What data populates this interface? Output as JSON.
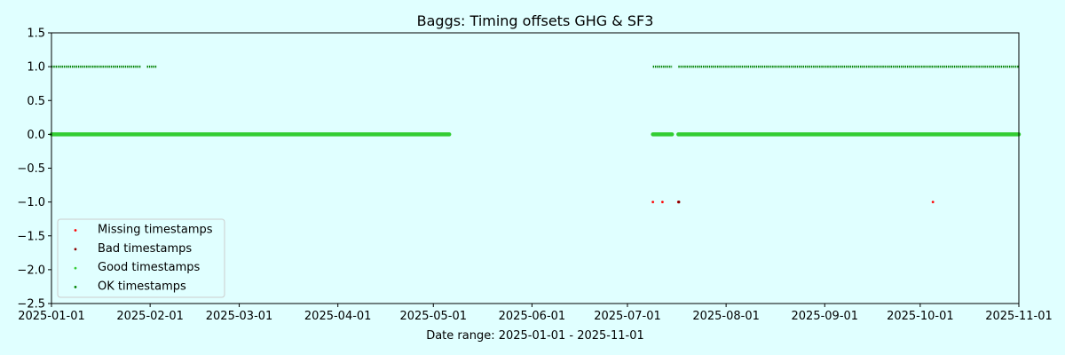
{
  "chart_data": {
    "type": "scatter",
    "title": "Baggs: Timing offsets GHG & SF3",
    "xlabel": "Date range: 2025-01-01 - 2025-11-01",
    "ylabel": "",
    "xlim": [
      "2025-01-01",
      "2025-11-01"
    ],
    "ylim": [
      -2.5,
      1.5
    ],
    "x_ticks": [
      "2025-01-01",
      "2025-02-01",
      "2025-03-01",
      "2025-04-01",
      "2025-05-01",
      "2025-06-01",
      "2025-07-01",
      "2025-08-01",
      "2025-09-01",
      "2025-10-01",
      "2025-11-01"
    ],
    "y_ticks": [
      1.5,
      1.0,
      0.5,
      0.0,
      -0.5,
      -1.0,
      -1.5,
      -2.0,
      -2.5
    ],
    "y_tick_labels": [
      "1.5",
      "1.0",
      "0.5",
      "0.0",
      "−0.5",
      "−1.0",
      "−1.5",
      "−2.0",
      "−2.5"
    ],
    "grid": false,
    "legend_position": "lower-left",
    "background": "#e0ffff",
    "series": [
      {
        "name": "Missing timestamps",
        "color": "#ff0000",
        "y": -1.0,
        "points": [
          "2025-07-09",
          "2025-07-12",
          "2025-07-17",
          "2025-07-17",
          "2025-10-05"
        ]
      },
      {
        "name": "Bad timestamps",
        "color": "#8b0000",
        "y": -1.0,
        "points": [
          "2025-07-17"
        ]
      },
      {
        "name": "Good timestamps",
        "color": "#32cd32",
        "y": 0.0,
        "ranges": [
          [
            "2025-01-01",
            "2025-05-06"
          ],
          [
            "2025-07-09",
            "2025-07-15"
          ],
          [
            "2025-07-17",
            "2025-11-01"
          ]
        ]
      },
      {
        "name": "OK timestamps",
        "color": "#008000",
        "y": 1.0,
        "ranges": [
          [
            "2025-01-01",
            "2025-01-29"
          ],
          [
            "2025-01-31",
            "2025-02-03"
          ],
          [
            "2025-07-09",
            "2025-07-15"
          ],
          [
            "2025-07-17",
            "2025-11-01"
          ]
        ]
      }
    ]
  }
}
